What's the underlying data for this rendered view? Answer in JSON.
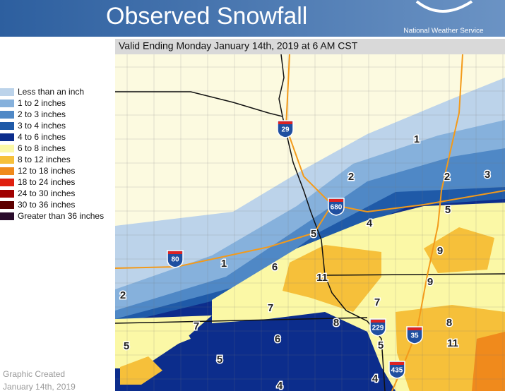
{
  "header": {
    "title": "Observed Snowfall",
    "agency": "National Weather Service"
  },
  "subtitle": "Valid Ending Monday January 14th, 2019 at 6 AM CST",
  "legend": {
    "items": [
      {
        "label": "Less than an inch",
        "color": "#bcd3ea"
      },
      {
        "label": "1 to 2 inches",
        "color": "#86b1dc"
      },
      {
        "label": "2 to 3 inches",
        "color": "#4f88c6"
      },
      {
        "label": "3 to 4 inches",
        "color": "#1f5aa8"
      },
      {
        "label": "4 to 6 inches",
        "color": "#0c2d8c"
      },
      {
        "label": "6 to 8 inches",
        "color": "#fbf8a6"
      },
      {
        "label": "8 to 12 inches",
        "color": "#f6c03a"
      },
      {
        "label": "12 to 18 inches",
        "color": "#f08a1c"
      },
      {
        "label": "18 to 24 inches",
        "color": "#e0200f"
      },
      {
        "label": "24 to 30 inches",
        "color": "#a00000"
      },
      {
        "label": "30 to 36 inches",
        "color": "#5e0000"
      },
      {
        "label": "Greater than 36 inches",
        "color": "#2a0c2c"
      }
    ]
  },
  "map": {
    "labels": [
      "1",
      "2",
      "2",
      "3",
      "5",
      "4",
      "5",
      "9",
      "1",
      "6",
      "11",
      "9",
      "2",
      "7",
      "7",
      "8",
      "8",
      "7",
      "6",
      "5",
      "11",
      "5",
      "5",
      "4",
      "4"
    ],
    "shields": [
      "29",
      "680",
      "80",
      "229",
      "35",
      "435"
    ]
  },
  "footer": {
    "line1": "Graphic Created",
    "line2": "January 14th, 2019"
  }
}
